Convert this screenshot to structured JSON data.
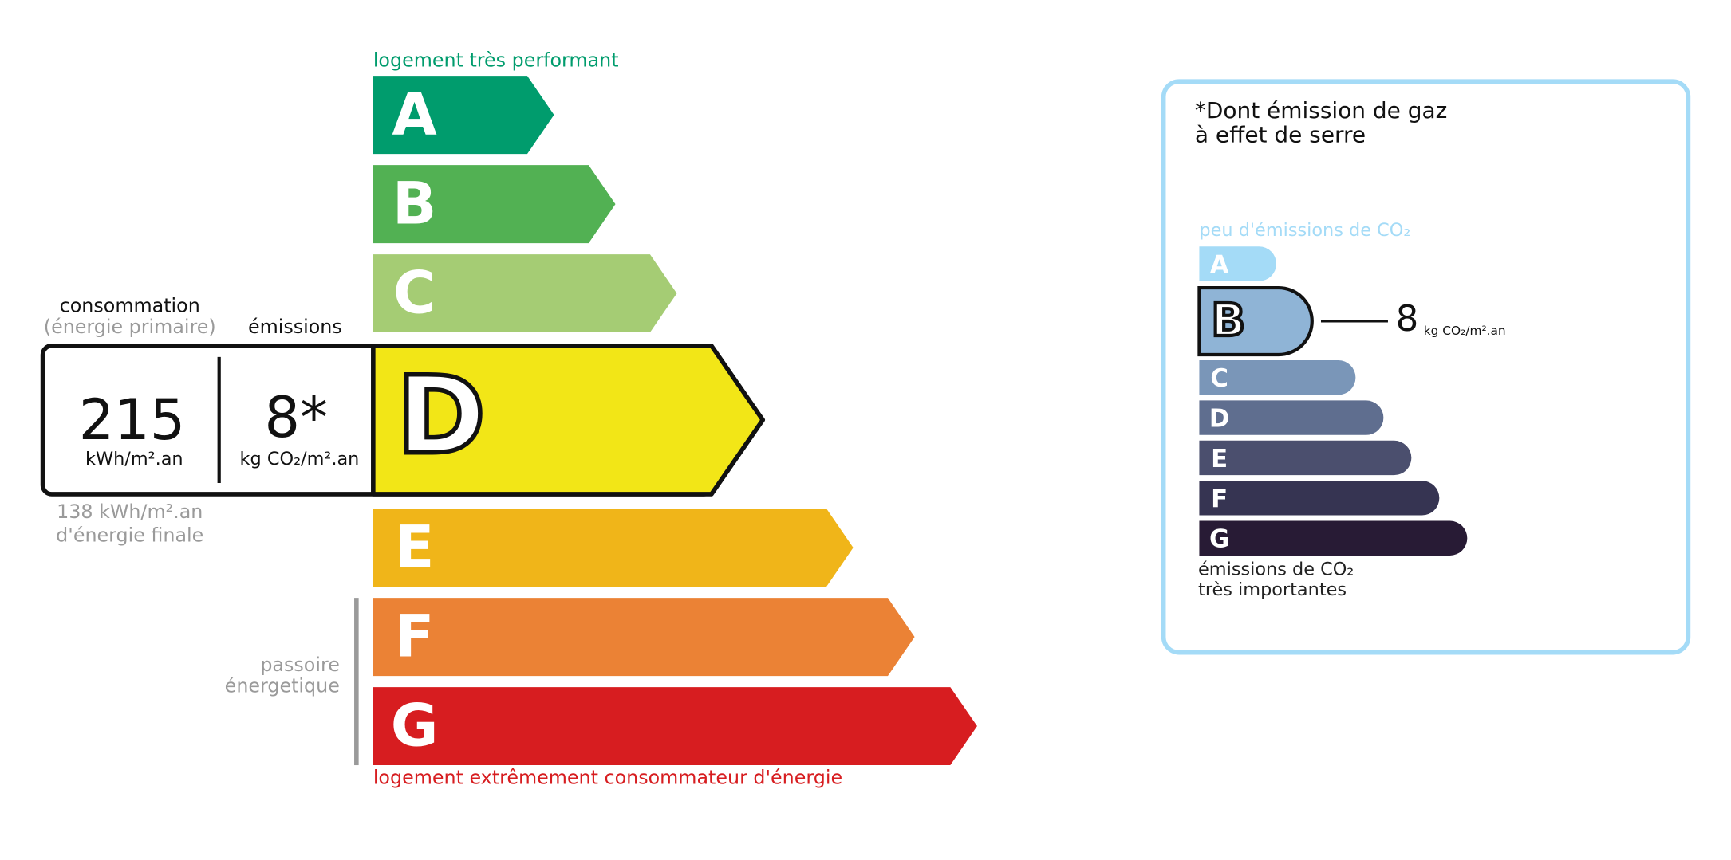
{
  "energy": {
    "top_label": "logement très performant",
    "bottom_label": "logement extrêmement consommateur d'énergie",
    "classes": [
      {
        "letter": "A",
        "color": "#009c6d"
      },
      {
        "letter": "B",
        "color": "#52b153"
      },
      {
        "letter": "C",
        "color": "#a5cc74"
      },
      {
        "letter": "D",
        "color": "#f2e617"
      },
      {
        "letter": "E",
        "color": "#f0b519"
      },
      {
        "letter": "F",
        "color": "#eb8235"
      },
      {
        "letter": "G",
        "color": "#d71d20"
      }
    ],
    "selected": 3,
    "consumption": {
      "header": "consommation",
      "subheader": "(énergie primaire)",
      "value": 215,
      "unit": "kWh/m².an"
    },
    "emissions": {
      "header": "émissions",
      "value": "8*",
      "unit": "kg CO₂/m².an"
    },
    "final_energy": [
      "138 kWh/m².an",
      "d'énergie finale"
    ],
    "passoire": [
      "passoire",
      "énergetique"
    ]
  },
  "ges": {
    "title": [
      "*Dont émission de gaz",
      "à effet de serre"
    ],
    "top_label": "peu d'émissions de CO₂",
    "bottom_label": [
      "émissions de CO₂",
      "très importantes"
    ],
    "classes": [
      {
        "letter": "A",
        "color": "#a4dbf7"
      },
      {
        "letter": "B",
        "color": "#8fb4d6"
      },
      {
        "letter": "C",
        "color": "#7a96b8"
      },
      {
        "letter": "D",
        "color": "#5f6e8f"
      },
      {
        "letter": "E",
        "color": "#4b4f6e"
      },
      {
        "letter": "F",
        "color": "#363452"
      },
      {
        "letter": "G",
        "color": "#281b35"
      }
    ],
    "selected": 1,
    "value": 8,
    "unit": "kg CO₂/m².an"
  }
}
